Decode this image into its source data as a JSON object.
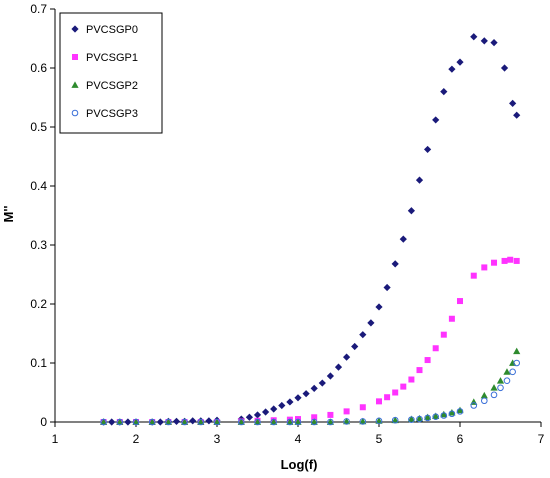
{
  "chart_data": {
    "type": "scatter",
    "xlabel": "Log(f)",
    "ylabel": "M''",
    "xlim": [
      1,
      7
    ],
    "ylim": [
      0,
      0.7
    ],
    "x_ticks": [
      "1",
      "2",
      "3",
      "4",
      "5",
      "6",
      "7"
    ],
    "y_ticks": [
      "0",
      "0.1",
      "0.2",
      "0.3",
      "0.4",
      "0.5",
      "0.6",
      "0.7"
    ],
    "grid": false,
    "legend_position": "top-left",
    "series": [
      {
        "name": "PVCSGP0",
        "marker": "diamond",
        "color": "#1a1a7a",
        "x": [
          1.6,
          1.7,
          1.8,
          1.9,
          2.0,
          2.2,
          2.3,
          2.4,
          2.5,
          2.6,
          2.7,
          2.8,
          2.9,
          3.0,
          3.3,
          3.4,
          3.5,
          3.6,
          3.7,
          3.8,
          3.9,
          4.0,
          4.1,
          4.2,
          4.3,
          4.4,
          4.5,
          4.6,
          4.7,
          4.8,
          4.9,
          5.0,
          5.1,
          5.2,
          5.3,
          5.4,
          5.5,
          5.6,
          5.7,
          5.8,
          5.9,
          6.0,
          6.17,
          6.3,
          6.42,
          6.55,
          6.65,
          6.7
        ],
        "y": [
          0.0,
          0.0,
          0.0,
          0.0,
          0.0,
          0.0,
          0.0,
          0.001,
          0.001,
          0.001,
          0.002,
          0.002,
          0.002,
          0.003,
          0.005,
          0.008,
          0.012,
          0.017,
          0.022,
          0.028,
          0.034,
          0.041,
          0.048,
          0.057,
          0.066,
          0.078,
          0.093,
          0.11,
          0.128,
          0.148,
          0.168,
          0.195,
          0.228,
          0.268,
          0.31,
          0.358,
          0.41,
          0.462,
          0.512,
          0.56,
          0.598,
          0.61,
          0.653,
          0.646,
          0.643,
          0.6,
          0.54,
          0.52
        ]
      },
      {
        "name": "PVCSGP1",
        "marker": "square",
        "color": "#ff33ff",
        "x": [
          1.6,
          1.8,
          2.0,
          2.2,
          2.4,
          2.6,
          2.8,
          3.0,
          3.3,
          3.5,
          3.7,
          3.9,
          4.0,
          4.2,
          4.4,
          4.6,
          4.8,
          5.0,
          5.1,
          5.2,
          5.3,
          5.4,
          5.5,
          5.6,
          5.7,
          5.8,
          5.9,
          6.0,
          6.17,
          6.3,
          6.42,
          6.55,
          6.62,
          6.7
        ],
        "y": [
          0.0,
          0.0,
          0.0,
          0.0,
          0.0,
          0.0,
          0.0,
          0.0,
          0.001,
          0.002,
          0.003,
          0.004,
          0.005,
          0.008,
          0.012,
          0.018,
          0.025,
          0.035,
          0.042,
          0.05,
          0.06,
          0.072,
          0.088,
          0.105,
          0.125,
          0.148,
          0.175,
          0.205,
          0.248,
          0.262,
          0.27,
          0.273,
          0.275,
          0.273
        ]
      },
      {
        "name": "PVCSGP2",
        "marker": "triangle",
        "color": "#2e8b2e",
        "x": [
          1.6,
          1.8,
          2.0,
          2.2,
          2.4,
          2.6,
          2.8,
          3.0,
          3.3,
          3.5,
          3.7,
          3.9,
          4.0,
          4.2,
          4.4,
          4.6,
          4.8,
          5.0,
          5.2,
          5.4,
          5.5,
          5.6,
          5.7,
          5.8,
          5.9,
          6.0,
          6.17,
          6.3,
          6.42,
          6.5,
          6.58,
          6.65,
          6.7
        ],
        "y": [
          0.0,
          0.0,
          0.0,
          0.0,
          0.0,
          0.0,
          0.0,
          0.0,
          0.0,
          0.0,
          0.0,
          0.0,
          0.0,
          0.0,
          0.0,
          0.001,
          0.001,
          0.002,
          0.003,
          0.005,
          0.006,
          0.008,
          0.01,
          0.013,
          0.016,
          0.02,
          0.034,
          0.045,
          0.058,
          0.07,
          0.085,
          0.1,
          0.12
        ]
      },
      {
        "name": "PVCSGP3",
        "marker": "circle-open",
        "color": "#3a6fd8",
        "x": [
          1.6,
          1.8,
          2.0,
          2.2,
          2.4,
          2.6,
          2.8,
          3.0,
          3.3,
          3.5,
          3.7,
          3.9,
          4.0,
          4.2,
          4.4,
          4.6,
          4.8,
          5.0,
          5.2,
          5.4,
          5.5,
          5.6,
          5.7,
          5.8,
          5.9,
          6.0,
          6.17,
          6.3,
          6.42,
          6.5,
          6.58,
          6.65,
          6.7
        ],
        "y": [
          0.0,
          0.0,
          0.0,
          0.0,
          0.0,
          0.0,
          0.0,
          0.0,
          0.0,
          0.0,
          0.0,
          0.0,
          0.0,
          0.0,
          0.0,
          0.001,
          0.001,
          0.002,
          0.003,
          0.004,
          0.005,
          0.007,
          0.009,
          0.011,
          0.014,
          0.018,
          0.028,
          0.036,
          0.046,
          0.058,
          0.07,
          0.085,
          0.1
        ]
      }
    ]
  }
}
